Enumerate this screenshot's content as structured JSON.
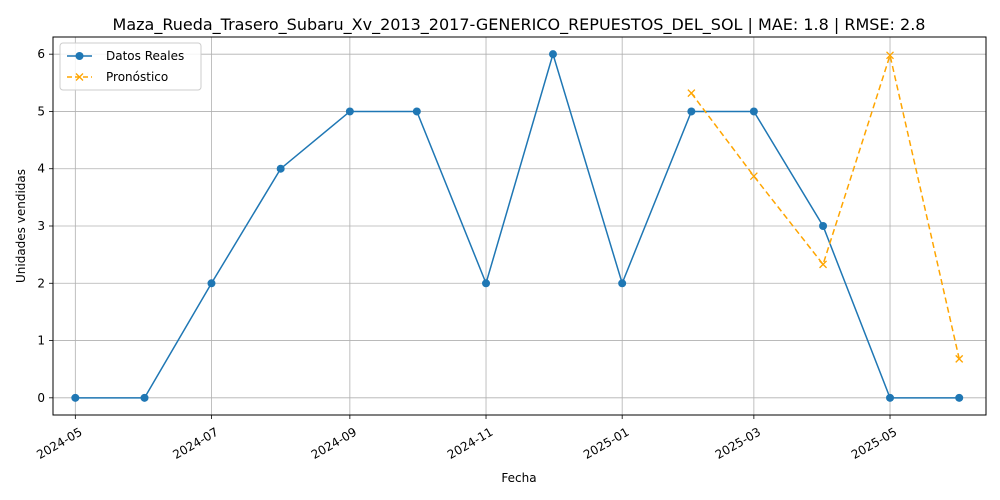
{
  "chart_data": {
    "type": "line",
    "title": "Maza_Rueda_Trasero_Subaru_Xv_2013_2017-GENERICO_REPUESTOS_DEL_SOL | MAE: 1.8 | RMSE: 2.8",
    "xlabel": "Fecha",
    "ylabel": "Unidades vendidas",
    "x_ticks": [
      "2024-05",
      "2024-07",
      "2024-09",
      "2024-11",
      "2025-01",
      "2025-03",
      "2025-05"
    ],
    "y_ticks": [
      "0",
      "1",
      "2",
      "3",
      "4",
      "5",
      "6"
    ],
    "ylim": [
      -0.3,
      6.3
    ],
    "xlim": [
      "2024-04-21",
      "2025-06-13"
    ],
    "grid": true,
    "legend_position": "upper-left",
    "series": [
      {
        "name": "Datos Reales",
        "color": "#1f77b4",
        "line_style": "solid",
        "marker": "circle",
        "x": [
          "2024-05-01",
          "2024-06-01",
          "2024-07-01",
          "2024-08-01",
          "2024-09-01",
          "2024-10-01",
          "2024-11-01",
          "2024-12-01",
          "2025-01-01",
          "2025-02-01",
          "2025-03-01",
          "2025-04-01",
          "2025-05-01",
          "2025-06-01"
        ],
        "values": [
          0,
          0,
          2,
          4,
          5,
          5,
          2,
          6,
          2,
          5,
          5,
          3,
          0,
          0
        ]
      },
      {
        "name": "Pronóstico",
        "color": "#ffa500",
        "line_style": "dashed",
        "marker": "x",
        "x": [
          "2025-02-01",
          "2025-03-01",
          "2025-04-01",
          "2025-05-01",
          "2025-06-01"
        ],
        "values": [
          5.32,
          3.87,
          2.33,
          5.98,
          0.68
        ]
      }
    ]
  }
}
